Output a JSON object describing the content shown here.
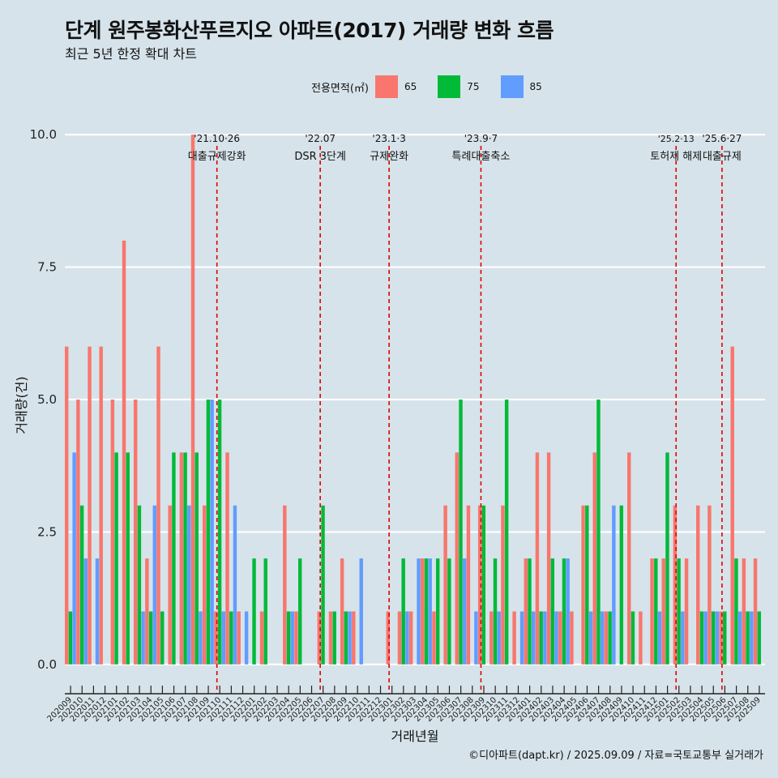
{
  "title": "단계 원주봉화산푸르지오 아파트(2017) 거래량 변화 흐름",
  "subtitle": "최근 5년 한정 확대 차트",
  "caption": "©디아파트(dapt.kr) / 2025.09.09 / 자료=국토교통부 실거래가",
  "legend": {
    "title": "전용면적(㎡)",
    "items": [
      {
        "label": "65",
        "color": "#F8766D"
      },
      {
        "label": "75",
        "color": "#00BA38"
      },
      {
        "label": "85",
        "color": "#619CFF"
      }
    ]
  },
  "chart_data": {
    "type": "bar",
    "xlabel": "거래년월",
    "ylabel": "거래량(건)",
    "ylim": [
      -0.4,
      10.4
    ],
    "yticks": [
      "0.0",
      "2.5",
      "5.0",
      "7.5",
      "10.0"
    ],
    "grid": "horizontal major lines only",
    "legend_position": "top",
    "categories": [
      "202009",
      "202010",
      "202011",
      "202012",
      "202101",
      "202102",
      "202103",
      "202104",
      "202105",
      "202106",
      "202107",
      "202108",
      "202109",
      "202110",
      "202111",
      "202112",
      "202201",
      "202202",
      "202203",
      "202204",
      "202205",
      "202206",
      "202207",
      "202208",
      "202209",
      "202210",
      "202211",
      "202212",
      "202301",
      "202302",
      "202303",
      "202304",
      "202305",
      "202306",
      "202307",
      "202308",
      "202309",
      "202310",
      "202311",
      "202312",
      "202401",
      "202402",
      "202403",
      "202404",
      "202405",
      "202406",
      "202407",
      "202408",
      "202409",
      "202410",
      "202411",
      "202412",
      "202501",
      "202502",
      "202503",
      "202504",
      "202505",
      "202506",
      "202507",
      "202508",
      "202509"
    ],
    "series": [
      {
        "name": "65",
        "color": "#F8766D",
        "values": [
          6,
          5,
          6,
          6,
          5,
          8,
          5,
          2,
          6,
          3,
          4,
          10,
          3,
          1,
          4,
          1,
          0,
          1,
          0,
          3,
          1,
          0,
          1,
          1,
          2,
          1,
          0,
          0,
          1,
          1,
          1,
          2,
          1,
          3,
          4,
          3,
          3,
          1,
          3,
          1,
          2,
          4,
          4,
          1,
          1,
          3,
          4,
          1,
          0,
          4,
          1,
          2,
          2,
          3,
          2,
          3,
          3,
          1,
          6,
          2,
          2
        ]
      },
      {
        "name": "75",
        "color": "#00BA38",
        "values": [
          1,
          3,
          0,
          0,
          4,
          4,
          3,
          1,
          1,
          4,
          4,
          4,
          5,
          5,
          1,
          0,
          2,
          2,
          0,
          1,
          2,
          0,
          3,
          1,
          1,
          0,
          0,
          0,
          0,
          2,
          0,
          2,
          2,
          2,
          5,
          0,
          3,
          2,
          5,
          0,
          2,
          1,
          2,
          2,
          0,
          3,
          5,
          1,
          3,
          1,
          0,
          2,
          4,
          2,
          0,
          1,
          1,
          1,
          2,
          1,
          1
        ]
      },
      {
        "name": "85",
        "color": "#619CFF",
        "values": [
          4,
          2,
          2,
          0,
          0,
          0,
          1,
          3,
          0,
          0,
          3,
          1,
          5,
          1,
          3,
          1,
          0,
          0,
          0,
          1,
          0,
          0,
          0,
          0,
          1,
          2,
          0,
          0,
          0,
          1,
          2,
          2,
          0,
          0,
          2,
          1,
          0,
          1,
          0,
          1,
          1,
          1,
          1,
          2,
          0,
          1,
          1,
          3,
          0,
          0,
          0,
          1,
          0,
          1,
          0,
          1,
          1,
          0,
          1,
          1,
          0
        ]
      }
    ],
    "annotations": [
      {
        "index": 13,
        "date": "'21.10·26",
        "text": "대출규제강화"
      },
      {
        "index": 22,
        "date": "'22.07",
        "text": "DSR 3단계"
      },
      {
        "index": 28,
        "date": "'23.1·3",
        "text": "규제완화"
      },
      {
        "index": 36,
        "date": "'23.9·7",
        "text": "특례대출축소"
      },
      {
        "index": 53,
        "date": "'25.2·13",
        "text": "토허제 해제"
      },
      {
        "index": 57,
        "date": "'25.6·27",
        "text": "대출규제"
      }
    ]
  }
}
